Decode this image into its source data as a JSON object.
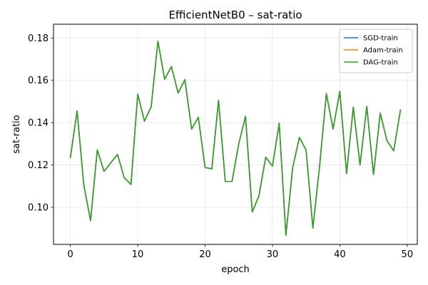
{
  "chart_data": {
    "type": "line",
    "title": "EfficientNetB0 – sat-ratio",
    "xlabel": "epoch",
    "ylabel": "sat-ratio",
    "xlim": [
      -2.5,
      51.5
    ],
    "ylim": [
      0.0825,
      0.1865
    ],
    "xticks": [
      0,
      10,
      20,
      30,
      40,
      50
    ],
    "xtick_labels": [
      "0",
      "10",
      "20",
      "30",
      "40",
      "50"
    ],
    "yticks": [
      0.1,
      0.12,
      0.14,
      0.16,
      0.18
    ],
    "ytick_labels": [
      "0.10",
      "0.12",
      "0.14",
      "0.16",
      "0.18"
    ],
    "grid": true,
    "legend_position": "top-right",
    "x": [
      0,
      1,
      2,
      3,
      4,
      5,
      6,
      7,
      8,
      9,
      10,
      11,
      12,
      13,
      14,
      15,
      16,
      17,
      18,
      19,
      20,
      21,
      22,
      23,
      24,
      25,
      26,
      27,
      28,
      29,
      30,
      31,
      32,
      33,
      34,
      35,
      36,
      37,
      38,
      39,
      40,
      41,
      42,
      43,
      44,
      45,
      46,
      47,
      48,
      49
    ],
    "series": [
      {
        "name": "SGD-train",
        "color": "#1f77b4",
        "values": [
          0.1235,
          0.1455,
          0.1105,
          0.0937,
          0.1272,
          0.117,
          0.121,
          0.125,
          0.114,
          0.1108,
          0.1535,
          0.1407,
          0.1475,
          0.1785,
          0.1605,
          0.1665,
          0.154,
          0.1603,
          0.137,
          0.1425,
          0.1188,
          0.1182,
          0.1505,
          0.1122,
          0.1122,
          0.13,
          0.143,
          0.0978,
          0.1055,
          0.1237,
          0.1195,
          0.1397,
          0.0868,
          0.1187,
          0.133,
          0.127,
          0.0902,
          0.1195,
          0.1537,
          0.137,
          0.1548,
          0.116,
          0.1473,
          0.12,
          0.1477,
          0.1155,
          0.1445,
          0.1315,
          0.1267,
          0.146
        ]
      },
      {
        "name": "Adam-train",
        "color": "#ff7f0e",
        "values": [
          0.1235,
          0.1455,
          0.1105,
          0.0937,
          0.1272,
          0.117,
          0.121,
          0.125,
          0.114,
          0.1108,
          0.1535,
          0.1407,
          0.1475,
          0.1785,
          0.1605,
          0.1665,
          0.154,
          0.1603,
          0.137,
          0.1425,
          0.1188,
          0.1182,
          0.1505,
          0.1122,
          0.1122,
          0.13,
          0.143,
          0.0978,
          0.1055,
          0.1237,
          0.1195,
          0.1397,
          0.0868,
          0.1187,
          0.133,
          0.127,
          0.0902,
          0.1195,
          0.1537,
          0.137,
          0.1548,
          0.116,
          0.1473,
          0.12,
          0.1477,
          0.1155,
          0.1445,
          0.1315,
          0.1267,
          0.146
        ]
      },
      {
        "name": "DAG-train",
        "color": "#2ca02c",
        "values": [
          0.1235,
          0.1455,
          0.1105,
          0.0937,
          0.1272,
          0.117,
          0.121,
          0.125,
          0.114,
          0.1108,
          0.1535,
          0.1407,
          0.1475,
          0.1785,
          0.1605,
          0.1665,
          0.154,
          0.1603,
          0.137,
          0.1425,
          0.1188,
          0.1182,
          0.1505,
          0.1122,
          0.1122,
          0.13,
          0.143,
          0.0978,
          0.1055,
          0.1237,
          0.1195,
          0.1397,
          0.0868,
          0.1187,
          0.133,
          0.127,
          0.0902,
          0.1195,
          0.1537,
          0.137,
          0.1548,
          0.116,
          0.1473,
          0.12,
          0.1477,
          0.1155,
          0.1445,
          0.1315,
          0.1267,
          0.146
        ]
      }
    ]
  }
}
